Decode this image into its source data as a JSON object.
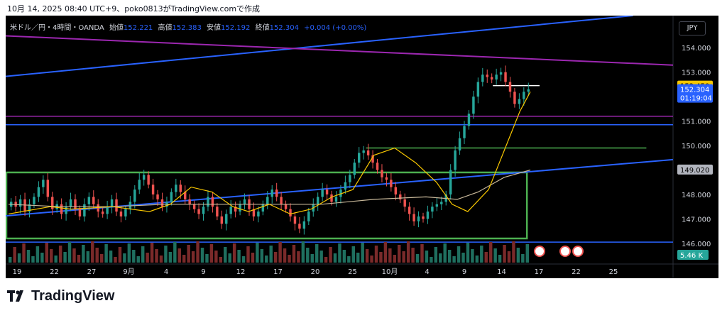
{
  "header": {
    "caption": "10月 14, 2025 08:40 UTC+9、poko0813がTradingView.comで作成"
  },
  "legend": {
    "symbol": "米ドル／円・4時間・OANDA",
    "open_label": "始値",
    "open": "152.221",
    "high_label": "高値",
    "high": "152.383",
    "low_label": "安値",
    "low": "152.192",
    "close_label": "終値",
    "close": "152.304",
    "change": "+0.004 (+0.00%)"
  },
  "currency_button": "JPY",
  "footer": {
    "brand": "TradingView"
  },
  "chart_data": {
    "type": "candlestick",
    "symbol": "USD/JPY",
    "timeframe": "4H",
    "y_range": [
      145.3,
      154.5
    ],
    "y_ticks": [
      "154.000",
      "153.000",
      "151.000",
      "150.000",
      "148.000",
      "147.000",
      "146.000"
    ],
    "x_ticks": [
      "19",
      "22",
      "27",
      "9月",
      "4",
      "9",
      "12",
      "17",
      "20",
      "25",
      "10月",
      "4",
      "9",
      "14",
      "17",
      "22",
      "25"
    ],
    "price_labels": [
      {
        "text": "152.450",
        "bg": "#f7c600",
        "fg": "#000000",
        "value": 152.45
      },
      {
        "text": "152.304",
        "text2": "01:19:04",
        "bg": "#2962ff",
        "fg": "#ffffff",
        "value": 152.304
      },
      {
        "text": "149.020",
        "bg": "#b2b5be",
        "fg": "#000000",
        "value": 149.02
      }
    ],
    "volume_label": "5.46 K",
    "ma_fast": [
      [
        0,
        147.2
      ],
      [
        0.08,
        147.5
      ],
      [
        0.12,
        147.4
      ],
      [
        0.2,
        147.5
      ],
      [
        0.27,
        147.3
      ],
      [
        0.31,
        147.6
      ],
      [
        0.35,
        148.3
      ],
      [
        0.39,
        148.1
      ],
      [
        0.43,
        147.5
      ],
      [
        0.46,
        147.3
      ],
      [
        0.5,
        147.6
      ],
      [
        0.54,
        147.2
      ],
      [
        0.58,
        147.4
      ],
      [
        0.62,
        147.9
      ],
      [
        0.66,
        148.2
      ],
      [
        0.7,
        149.6
      ],
      [
        0.74,
        149.9
      ],
      [
        0.78,
        149.3
      ],
      [
        0.82,
        148.5
      ],
      [
        0.85,
        147.6
      ],
      [
        0.88,
        147.3
      ],
      [
        0.92,
        148.2
      ],
      [
        0.95,
        149.8
      ],
      [
        0.98,
        151.4
      ],
      [
        1.0,
        152.2
      ]
    ],
    "ma_slow": [
      [
        0,
        147.6
      ],
      [
        0.1,
        147.5
      ],
      [
        0.2,
        147.5
      ],
      [
        0.3,
        147.6
      ],
      [
        0.4,
        147.6
      ],
      [
        0.5,
        147.6
      ],
      [
        0.6,
        147.6
      ],
      [
        0.7,
        147.8
      ],
      [
        0.8,
        147.9
      ],
      [
        0.86,
        147.8
      ],
      [
        0.9,
        148.1
      ],
      [
        0.95,
        148.7
      ],
      [
        1.0,
        149.0
      ]
    ],
    "closes": [
      147.7,
      147.5,
      147.8,
      147.3,
      147.6,
      147.9,
      148.3,
      148.6,
      147.9,
      147.4,
      147.6,
      147.2,
      147.5,
      147.8,
      147.4,
      147.1,
      147.6,
      147.9,
      147.6,
      147.3,
      147.2,
      147.5,
      147.8,
      147.3,
      147.1,
      147.4,
      147.7,
      148.2,
      148.6,
      148.8,
      148.4,
      148.0,
      147.8,
      147.5,
      147.7,
      148.1,
      148.4,
      148.1,
      147.8,
      147.6,
      147.4,
      147.2,
      147.5,
      147.9,
      147.5,
      147.1,
      146.8,
      147.2,
      147.5,
      147.3,
      147.6,
      147.8,
      147.4,
      147.1,
      147.3,
      147.6,
      147.9,
      148.2,
      147.9,
      147.6,
      147.4,
      147.1,
      146.8,
      146.6,
      146.9,
      147.3,
      147.6,
      147.9,
      148.2,
      148.0,
      147.7,
      147.9,
      148.2,
      148.5,
      148.8,
      149.3,
      149.7,
      149.8,
      149.6,
      149.3,
      149.0,
      148.7,
      148.6,
      148.3,
      148.0,
      147.8,
      147.5,
      147.2,
      146.9,
      147.1,
      147.0,
      147.3,
      147.5,
      147.6,
      147.7,
      148.0,
      149.0,
      149.8,
      150.3,
      150.8,
      151.3,
      152.0,
      152.6,
      152.9,
      152.8,
      152.7,
      152.9,
      153.0,
      152.6,
      152.2,
      151.7,
      151.9,
      152.2,
      152.3
    ],
    "overlay_lines": [
      {
        "color": "#2962ff",
        "from": [
          0.0,
          0.27
        ],
        "to": [
          0.94,
          0.0
        ]
      },
      {
        "color": "#9c27b0",
        "from": [
          0.0,
          0.09
        ],
        "to": [
          1.0,
          0.22
        ]
      },
      {
        "color": "#2962ff",
        "from": [
          0.0,
          0.89
        ],
        "to": [
          1.0,
          0.64
        ]
      }
    ],
    "horizontal_lines": [
      {
        "value": 151.2,
        "color": "#9c27b0",
        "x0": 0.0,
        "x1": 1.0
      },
      {
        "value": 150.85,
        "color": "#2962ff",
        "x0": 0.0,
        "x1": 1.0
      },
      {
        "value": 149.9,
        "color": "#4caf50",
        "x0": 0.54,
        "x1": 0.96
      },
      {
        "value": 146.05,
        "color": "#2962ff",
        "x0": 0.0,
        "x1": 1.0
      },
      {
        "value": 152.45,
        "color": "#ffffff",
        "x0": 0.73,
        "x1": 0.8
      }
    ],
    "box": {
      "x0": 0.0,
      "x1": 0.78,
      "y_top": 148.9,
      "y_bot": 146.2,
      "color": "#4caf50"
    }
  }
}
